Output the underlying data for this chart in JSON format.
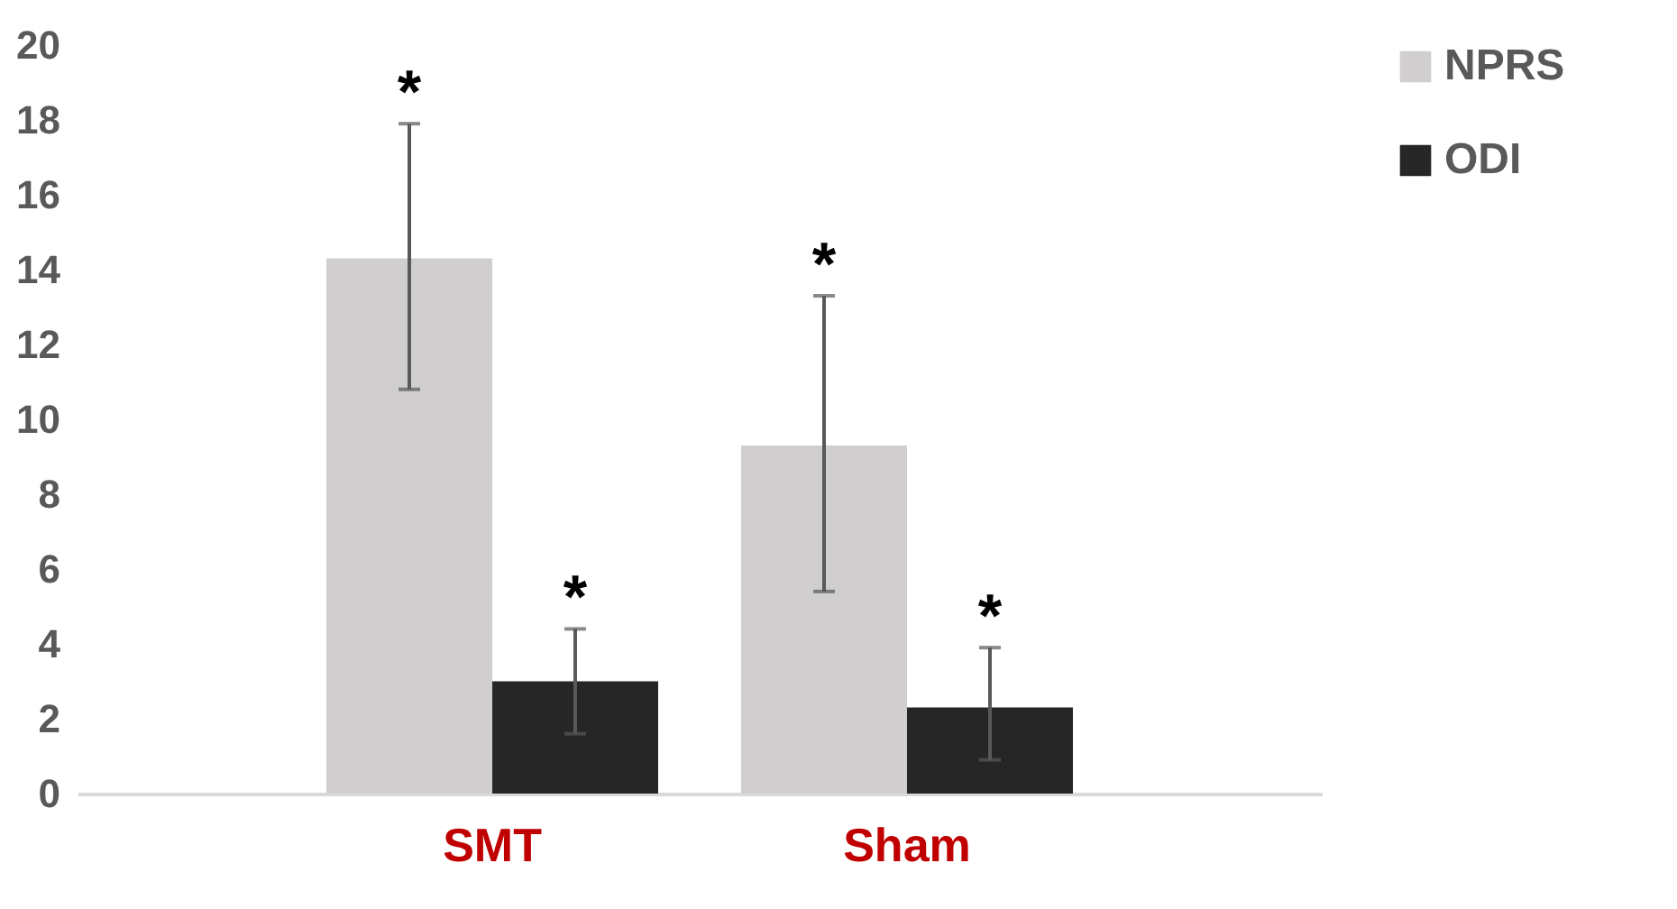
{
  "chart_data": {
    "type": "bar",
    "categories": [
      "SMT",
      "Sham"
    ],
    "series": [
      {
        "name": "NPRS",
        "color": "#d0cece",
        "values": [
          14.3,
          9.3
        ],
        "errors": [
          [
            10.8,
            17.9
          ],
          [
            5.4,
            13.3
          ]
        ]
      },
      {
        "name": "ODI",
        "color": "#262626",
        "values": [
          3.0,
          2.3
        ],
        "errors": [
          [
            1.6,
            4.4
          ],
          [
            0.9,
            3.9
          ]
        ]
      }
    ],
    "ylim": [
      0,
      20
    ],
    "yticks": [
      0,
      2,
      4,
      6,
      8,
      10,
      12,
      14,
      16,
      18,
      20
    ],
    "grid": false,
    "legend": "right",
    "annotations": [
      "*",
      "*",
      "*",
      "*"
    ]
  }
}
